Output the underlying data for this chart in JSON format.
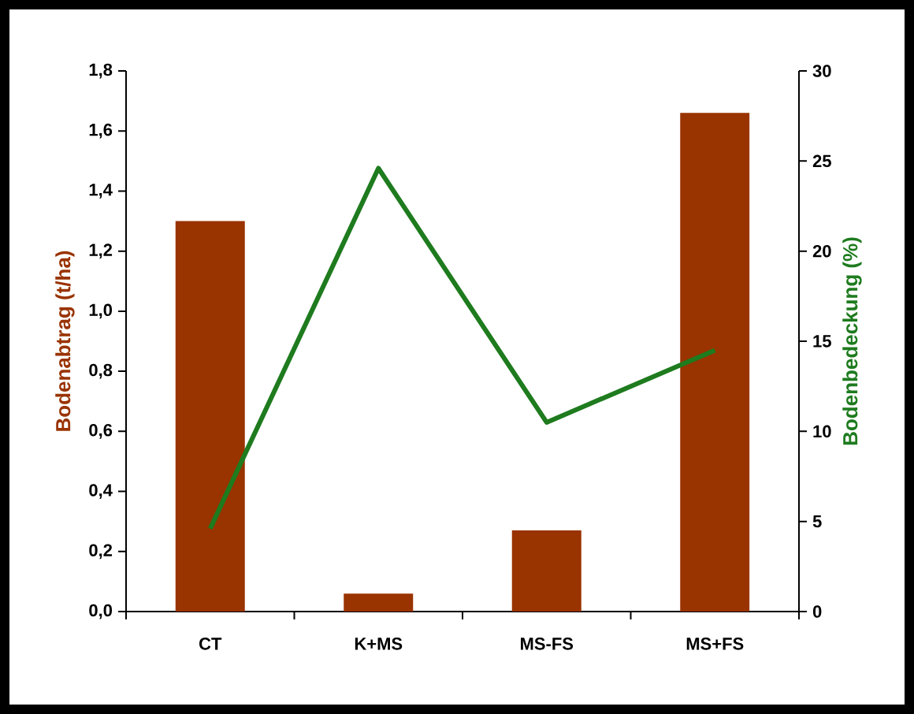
{
  "chart_data": {
    "type": "bar",
    "categories": [
      "CT",
      "K+MS",
      "MS-FS",
      "MS+FS"
    ],
    "ylabel": "Bodenabtrag (t/ha)",
    "y2label": "Bodenbedeckung (%)",
    "ylim": [
      0,
      1.8
    ],
    "yticks": [
      {
        "value": 0,
        "label": "0,0"
      },
      {
        "value": 0.2,
        "label": "0,2"
      },
      {
        "value": 0.4,
        "label": "0,4"
      },
      {
        "value": 0.6,
        "label": "0,6"
      },
      {
        "value": 0.8,
        "label": "0,8"
      },
      {
        "value": 1.0,
        "label": "1,0"
      },
      {
        "value": 1.2,
        "label": "1,2"
      },
      {
        "value": 1.4,
        "label": "1,4"
      },
      {
        "value": 1.6,
        "label": "1,6"
      },
      {
        "value": 1.8,
        "label": "1,8"
      }
    ],
    "y2lim": [
      0,
      30
    ],
    "y2ticks": [
      0,
      5,
      10,
      15,
      20,
      25,
      30
    ],
    "series": [
      {
        "color": "#993300",
        "values": [
          1.3,
          0.06,
          0.27,
          1.66
        ]
      },
      {
        "type": "line",
        "axis": "y2",
        "color": "#1e7b1e",
        "values": [
          4.6,
          24.6,
          10.5,
          14.5
        ]
      }
    ]
  }
}
